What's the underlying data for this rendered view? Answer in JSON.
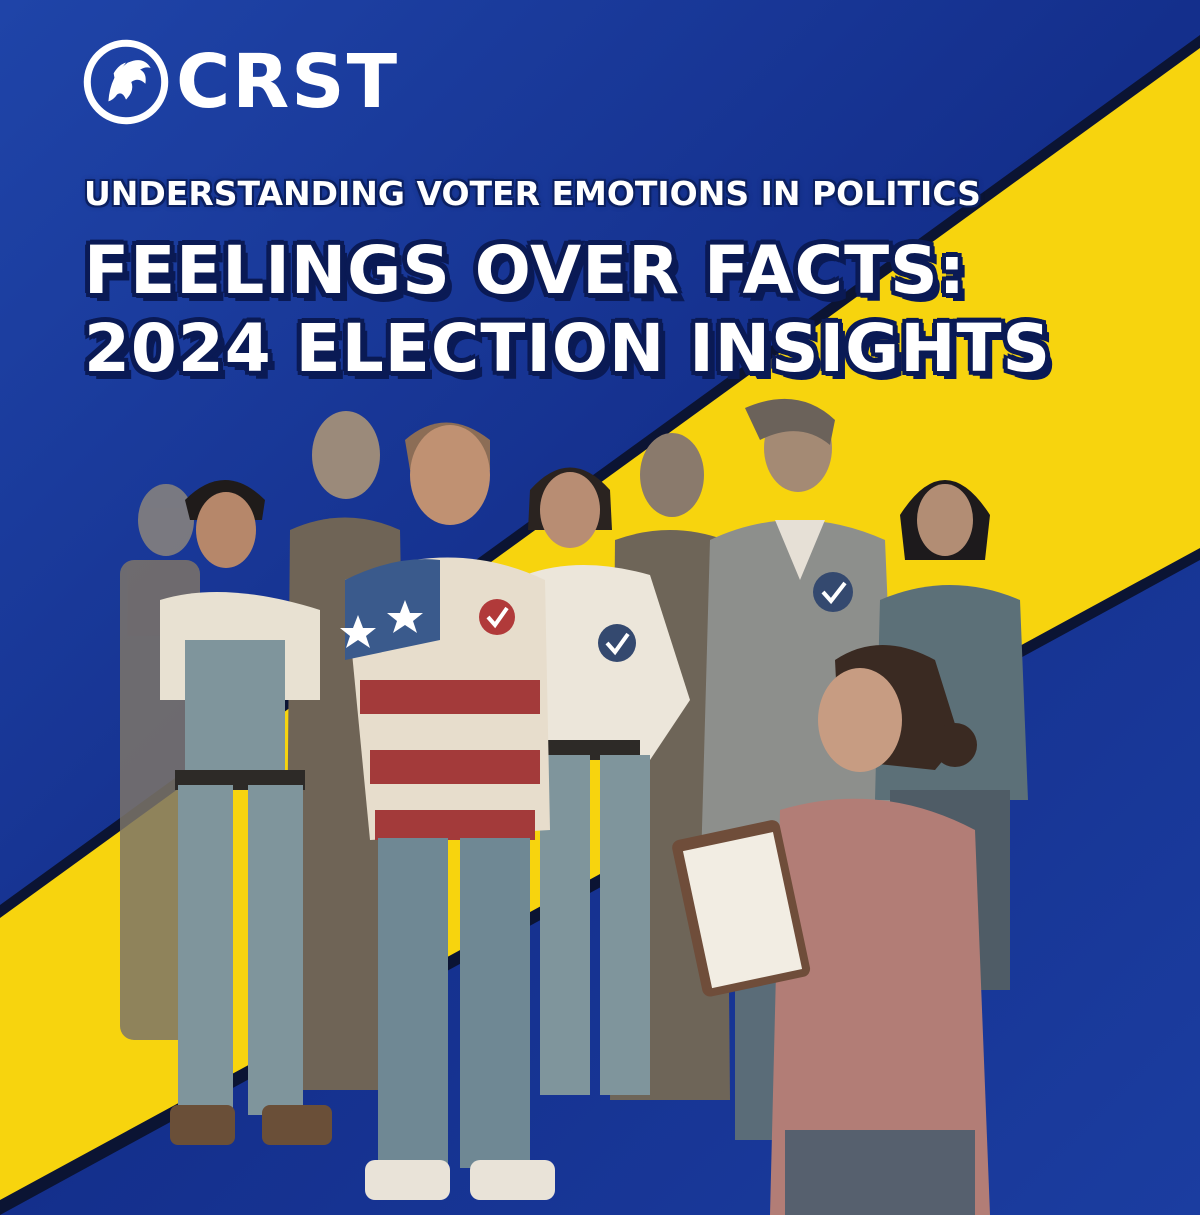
{
  "brand": {
    "logo_icon": "eagle-head-icon",
    "name": "CRST"
  },
  "headline": {
    "kicker": "UNDERSTANDING VOTER EMOTIONS IN POLITICS",
    "line1": "FEELINGS OVER FACTS:",
    "line2": "2024 ELECTION INSIGHTS"
  },
  "colors": {
    "blue": "#1a3a9c",
    "yellow": "#f7d40e",
    "white": "#ffffff"
  }
}
